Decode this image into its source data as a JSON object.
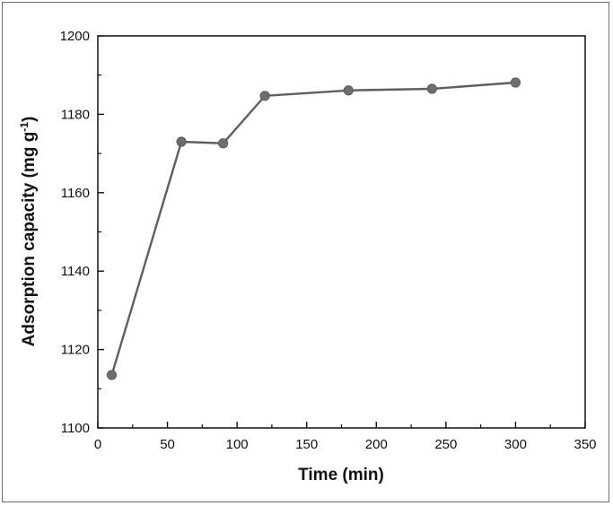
{
  "chart_data": {
    "type": "line",
    "title": "",
    "xlabel": "Time (min)",
    "ylabel": "Adsorption capacity (mg g",
    "ylabel_superscript": "-1",
    "ylabel_suffix": ")",
    "xlim": [
      0,
      350
    ],
    "ylim": [
      1100,
      1200
    ],
    "x_ticks": [
      0,
      50,
      100,
      150,
      200,
      250,
      300,
      350
    ],
    "y_ticks": [
      1100,
      1120,
      1140,
      1160,
      1180,
      1200
    ],
    "grid": false,
    "series": [
      {
        "x": [
          10,
          60,
          90,
          120,
          180,
          240,
          300
        ],
        "y": [
          1113.5,
          1173.0,
          1172.6,
          1184.7,
          1186.1,
          1186.5,
          1188.1
        ]
      }
    ],
    "colors": {
      "line": "#5f5f5f",
      "marker": "#6e6e6e",
      "axis": "#111111"
    }
  }
}
